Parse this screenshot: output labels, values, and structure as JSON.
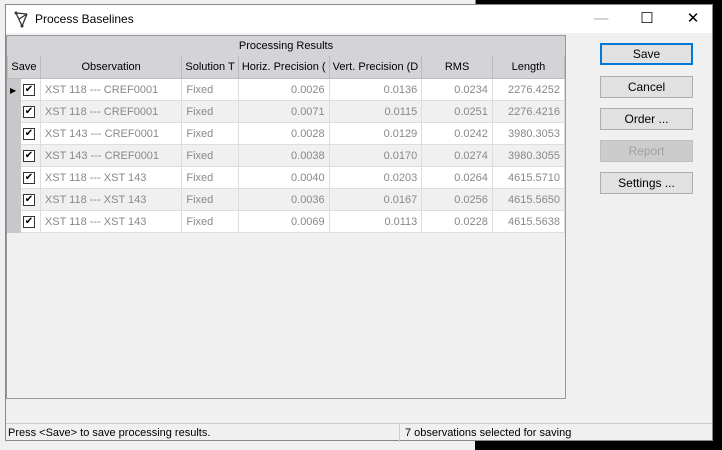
{
  "window": {
    "title": "Process Baselines",
    "minimize": "—",
    "maximize": "☐",
    "close": "✕"
  },
  "grid": {
    "group_header": "Processing Results",
    "columns": [
      "Save",
      "Observation",
      "Solution T",
      "Horiz. Precision (",
      "Vert. Precision (D",
      "RMS",
      "Length"
    ],
    "rows": [
      {
        "save": true,
        "observation": "XST 118 --- CREF0001",
        "solution": "Fixed",
        "horiz": "0.0026",
        "vert": "0.0136",
        "rms": "0.0234",
        "length": "2276.4252",
        "current": true
      },
      {
        "save": true,
        "observation": "XST 118 --- CREF0001",
        "solution": "Fixed",
        "horiz": "0.0071",
        "vert": "0.0115",
        "rms": "0.0251",
        "length": "2276.4216"
      },
      {
        "save": true,
        "observation": "XST 143 --- CREF0001",
        "solution": "Fixed",
        "horiz": "0.0028",
        "vert": "0.0129",
        "rms": "0.0242",
        "length": "3980.3053"
      },
      {
        "save": true,
        "observation": "XST 143 --- CREF0001",
        "solution": "Fixed",
        "horiz": "0.0038",
        "vert": "0.0170",
        "rms": "0.0274",
        "length": "3980.3055"
      },
      {
        "save": true,
        "observation": "XST 118 --- XST 143",
        "solution": "Fixed",
        "horiz": "0.0040",
        "vert": "0.0203",
        "rms": "0.0264",
        "length": "4615.5710"
      },
      {
        "save": true,
        "observation": "XST 118 --- XST 143",
        "solution": "Fixed",
        "horiz": "0.0036",
        "vert": "0.0167",
        "rms": "0.0256",
        "length": "4615.5650"
      },
      {
        "save": true,
        "observation": "XST 118 --- XST 143",
        "solution": "Fixed",
        "horiz": "0.0069",
        "vert": "0.0113",
        "rms": "0.0228",
        "length": "4615.5638"
      }
    ]
  },
  "buttons": {
    "save": "Save",
    "cancel": "Cancel",
    "order": "Order ...",
    "report": "Report",
    "settings": "Settings ..."
  },
  "status": {
    "left": "Press <Save> to save processing results.",
    "right": "7 observations selected for saving"
  }
}
